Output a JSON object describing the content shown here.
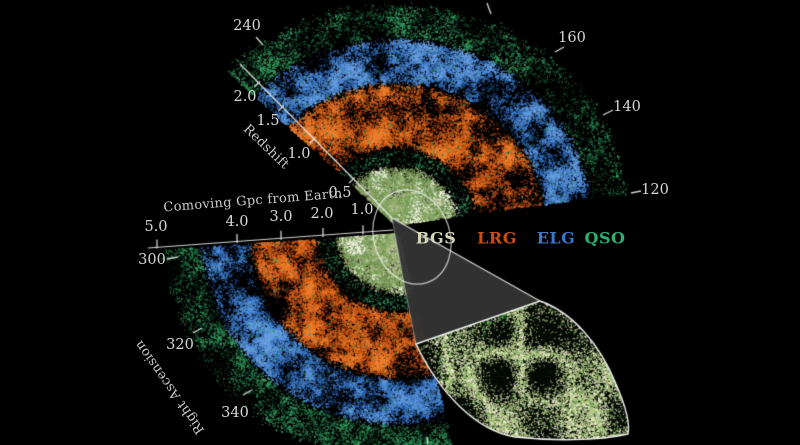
{
  "figure": {
    "background": "#000000",
    "legend": {
      "items": [
        {
          "label": "BGS",
          "color": "#d3d3b6"
        },
        {
          "label": "LRG",
          "color": "#c84e16"
        },
        {
          "label": "ELG",
          "color": "#3a78c8"
        },
        {
          "label": "QSO",
          "color": "#2eb06e"
        }
      ]
    },
    "axes": {
      "redshift": {
        "title": "Redshift",
        "ticks": [
          "2.0",
          "1.5",
          "1.0",
          "0.5"
        ]
      },
      "comoving": {
        "title": "Comoving Gpc from Earth",
        "ticks": [
          "5.0",
          "4.0",
          "3.0",
          "2.0",
          "1.0"
        ]
      },
      "ra_top": {
        "ticks": [
          "240",
          "160",
          "140",
          "120"
        ]
      },
      "ra_bottom": {
        "title": "Right Ascension",
        "ticks": [
          "300",
          "320",
          "340"
        ]
      }
    }
  },
  "chart_data": {
    "type": "scatter",
    "projection": "polar wedge sky map (two survey wedges sharing vertex at Earth, plus magnified inset wedge)",
    "radial_axis": {
      "label": "Comoving Gpc from Earth",
      "ticks_gpc": [
        5.0,
        4.0,
        3.0,
        2.0,
        1.0
      ],
      "range_gpc": [
        0,
        6.5
      ]
    },
    "secondary_radial_axis": {
      "label": "Redshift",
      "ticks": [
        0.5,
        1.0,
        1.5,
        2.0
      ]
    },
    "angular_axis": {
      "label": "Right Ascension",
      "top_wedge_ticks_deg": [
        240,
        160,
        140,
        120
      ],
      "bottom_wedge_ticks_deg": [
        300,
        320,
        340
      ]
    },
    "top_wedge": {
      "ra_span_deg": [
        120,
        248
      ],
      "opens": "upward"
    },
    "bottom_wedge": {
      "ra_span_deg": [
        297,
        397
      ],
      "opens": "down-left"
    },
    "series": [
      {
        "name": "BGS",
        "color": "#d3d3b6",
        "redshift_range": [
          0.0,
          0.4
        ],
        "region": "innermost pale yellow-green core around Earth"
      },
      {
        "name": "LRG",
        "color": "#c84e16",
        "redshift_range": [
          0.4,
          1.1
        ],
        "region": "orange-red second ring"
      },
      {
        "name": "ELG",
        "color": "#3a78c8",
        "redshift_range": [
          1.1,
          1.6
        ],
        "region": "blue third ring"
      },
      {
        "name": "QSO",
        "color": "#2eb06e",
        "redshift_range": [
          1.6,
          3.0
        ],
        "region": "dark green sparse outer ring"
      }
    ],
    "inset": {
      "content": "magnified wedge of the BGS core region showing cosmic-web filaments (pale yellow-white and green points)",
      "source_region": "white ellipse drawn around the BGS core at the wedge vertex"
    },
    "grid": false,
    "legend_position": "center, between the two wedges"
  }
}
